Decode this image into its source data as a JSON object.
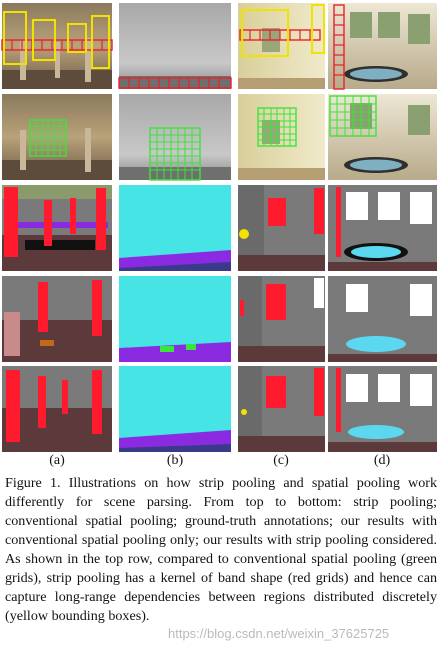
{
  "column_labels": [
    "(a)",
    "(b)",
    "(c)",
    "(d)"
  ],
  "caption": "Figure 1. Illustrations on how strip pooling and spatial pooling work differently for scene parsing. From top to bottom: strip pooling; conventional spatial pooling; ground-truth annotations; our results with conventional spatial pooling only; our results with strip pooling considered. As shown in the top row, compared to conventional spatial pooling (green grids), strip pooling has a kernel of band shape (red grids) and hence can capture long-range dependencies between regions distributed discretely (yellow bounding boxes).",
  "watermark": "https://blog.csdn.net/weixin_37625725",
  "colors": {
    "strip_grid": "#e8222a",
    "spatial_grid": "#39e639",
    "bounding_box": "#f2e200",
    "seg_pillar": "#ff1a2e",
    "seg_floor": "#5c3a3c",
    "seg_sky": "#47e4e6",
    "seg_water": "#5bd8f0",
    "seg_wall": "#7a7a7a",
    "seg_window": "#ffffff",
    "seg_purple": "#8a2be2"
  }
}
